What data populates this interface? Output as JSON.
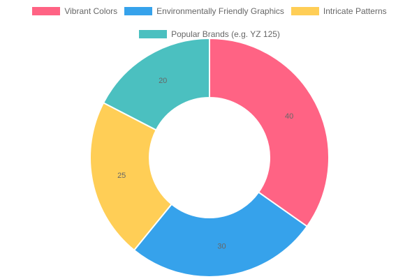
{
  "chart_data": {
    "type": "pie",
    "variant": "doughnut",
    "categories": [
      "Vibrant Colors",
      "Environmentally Friendly Graphics",
      "Intricate Patterns",
      "Popular Brands (e.g. YZ 125)"
    ],
    "values": [
      40,
      30,
      25,
      20
    ],
    "colors": [
      "#ff6384",
      "#36a2eb",
      "#ffce56",
      "#4bc0c0"
    ],
    "legend_position": "top",
    "data_labels_shown": true
  },
  "legend": {
    "items": [
      {
        "label": "Vibrant Colors",
        "color": "#ff6384"
      },
      {
        "label": "Environmentally Friendly Graphics",
        "color": "#36a2eb"
      },
      {
        "label": "Intricate Patterns",
        "color": "#ffce56"
      },
      {
        "label": "Popular Brands (e.g. YZ 125)",
        "color": "#4bc0c0"
      }
    ]
  }
}
